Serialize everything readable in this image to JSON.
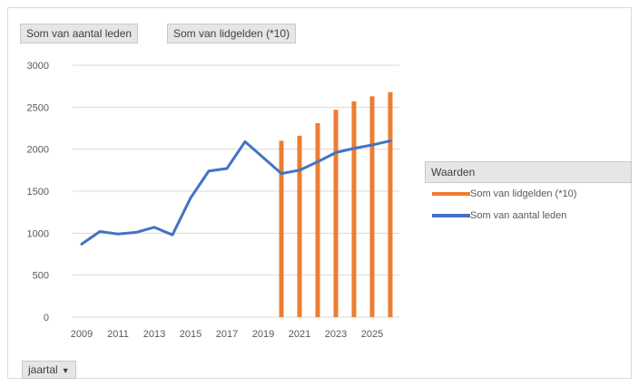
{
  "field_buttons": {
    "members": "Som van aantal leden",
    "fees": "Som van lidgelden (*10)"
  },
  "legend": {
    "title": "Waarden",
    "items": [
      {
        "label": "Som van lidgelden (*10)",
        "color": "#ed7d31"
      },
      {
        "label": "Som van aantal leden",
        "color": "#4472c4"
      }
    ]
  },
  "axis_field": {
    "label": "jaartal",
    "arrow": "▼"
  },
  "chart_data": {
    "type": "bar+line",
    "title": "",
    "xlabel": "",
    "ylabel": "",
    "ylim": [
      0,
      3000
    ],
    "yticks": [
      0,
      500,
      1000,
      1500,
      2000,
      2500,
      3000
    ],
    "categories": [
      2009,
      2010,
      2011,
      2012,
      2013,
      2014,
      2015,
      2016,
      2017,
      2018,
      2019,
      2020,
      2021,
      2022,
      2023,
      2024,
      2025,
      2026
    ],
    "xtick_labels": [
      "2009",
      "2011",
      "2013",
      "2015",
      "2017",
      "2019",
      "2021",
      "2023",
      "2025"
    ],
    "grid": true,
    "legend_position": "right",
    "series": [
      {
        "name": "Som van lidgelden (*10)",
        "type": "bar",
        "color": "#ed7d31",
        "values": [
          null,
          null,
          null,
          null,
          null,
          null,
          null,
          null,
          null,
          null,
          null,
          2100,
          2160,
          2310,
          2470,
          2570,
          2630,
          2680
        ]
      },
      {
        "name": "Som van aantal leden",
        "type": "line",
        "color": "#4472c4",
        "values": [
          870,
          1020,
          990,
          1010,
          1070,
          980,
          1420,
          1740,
          1770,
          2090,
          1900,
          1710,
          1750,
          1850,
          1960,
          2010,
          2050,
          2100
        ]
      }
    ]
  }
}
